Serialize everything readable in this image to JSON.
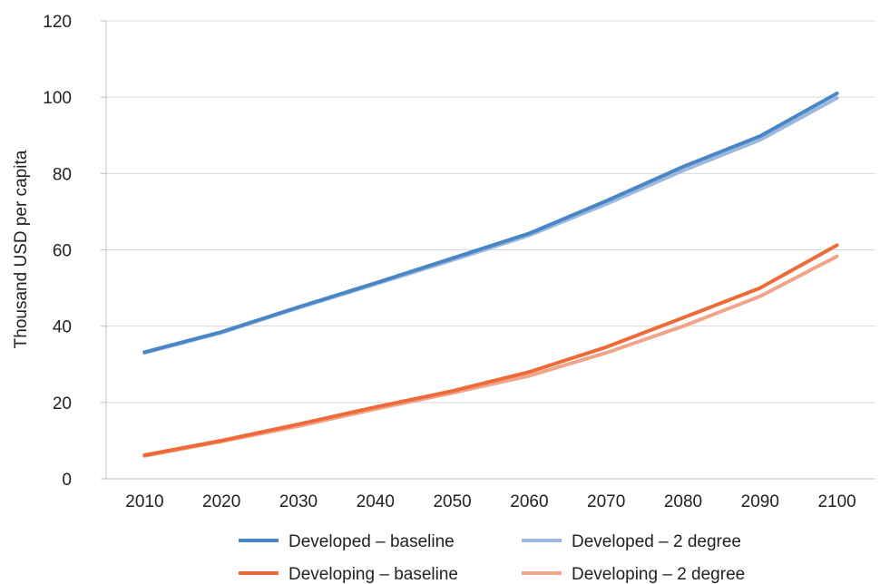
{
  "chart_data": {
    "type": "line",
    "ylabel": "Thousand USD per capita",
    "xlabel": "",
    "ylim": [
      0,
      120
    ],
    "yticks": [
      0,
      20,
      40,
      60,
      80,
      100,
      120
    ],
    "ytick_labels": [
      "0",
      "20",
      "40",
      "60",
      "80",
      "100",
      "120"
    ],
    "categories": [
      "2010",
      "2020",
      "2030",
      "2040",
      "2050",
      "2060",
      "2070",
      "2080",
      "2090",
      "2100"
    ],
    "grid": true,
    "legend_position": "bottom",
    "series": [
      {
        "name": "Developed – baseline",
        "color": "#4a86c5",
        "values": [
          33.2,
          38.5,
          45.0,
          51.3,
          57.8,
          64.3,
          72.8,
          81.8,
          89.8,
          101.0
        ]
      },
      {
        "name": "Developed – 2 degree",
        "color": "#9bb8df",
        "values": [
          33.0,
          38.3,
          44.8,
          51.0,
          57.3,
          63.8,
          72.0,
          80.8,
          88.8,
          99.8
        ]
      },
      {
        "name": "Developing – baseline",
        "color": "#ee6a38",
        "values": [
          6.2,
          10.0,
          14.3,
          18.8,
          23.0,
          28.0,
          34.5,
          42.2,
          50.0,
          61.2
        ]
      },
      {
        "name": "Developing – 2 degree",
        "color": "#f0a58a",
        "values": [
          6.0,
          9.8,
          13.8,
          18.3,
          22.5,
          27.0,
          33.0,
          40.0,
          47.8,
          58.3
        ]
      }
    ]
  }
}
